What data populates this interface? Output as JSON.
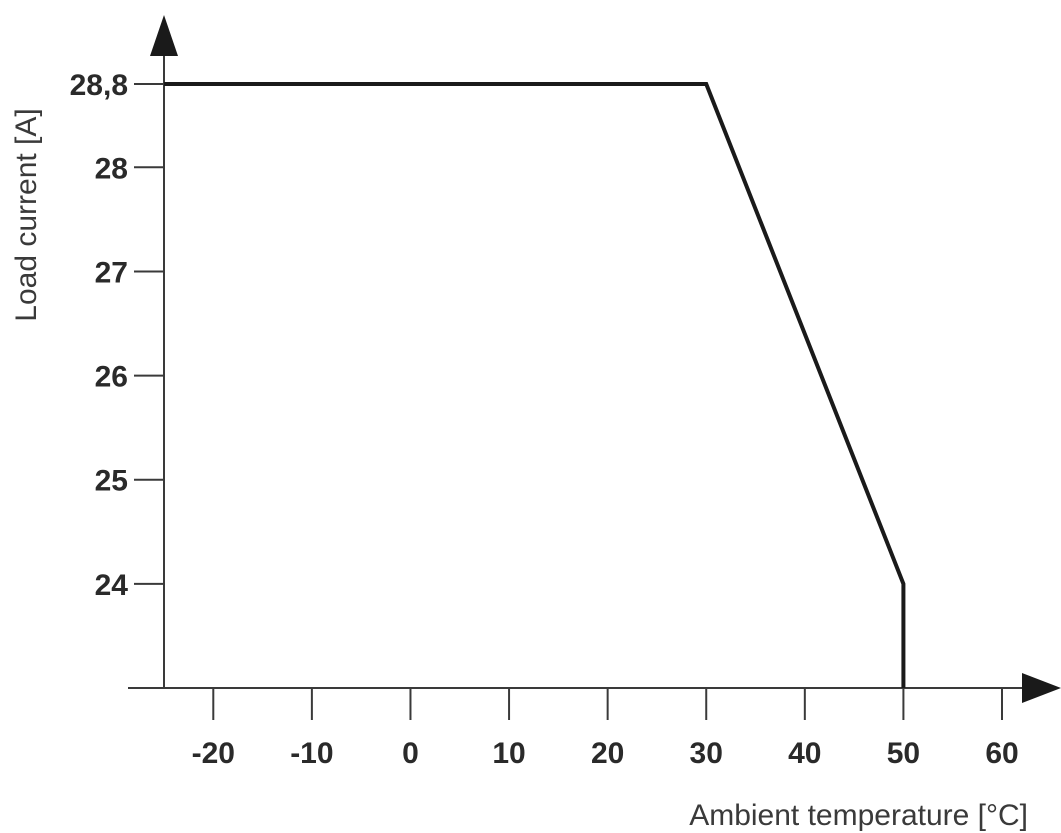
{
  "chart_data": {
    "type": "line",
    "title": "",
    "xlabel": "Ambient temperature [°C]",
    "ylabel": "Load current [A]",
    "x_ticks": [
      -20,
      -10,
      0,
      10,
      20,
      30,
      40,
      50,
      60
    ],
    "y_ticks": [
      24,
      25,
      26,
      27,
      28,
      28.8
    ],
    "x_tick_labels": [
      "-20",
      "-10",
      "0",
      "10",
      "20",
      "30",
      "40",
      "50",
      "60"
    ],
    "y_tick_labels": [
      "24",
      "25",
      "26",
      "27",
      "28",
      "28,8"
    ],
    "xlim": [
      -25,
      60
    ],
    "ylim": [
      23,
      28.8
    ],
    "grid": false,
    "series": [
      {
        "x": [
          -25,
          30,
          50,
          50
        ],
        "y": [
          28.8,
          28.8,
          24,
          23
        ]
      }
    ],
    "line_color": "#1a1a1a",
    "axis_color": "#3a3a3a"
  }
}
